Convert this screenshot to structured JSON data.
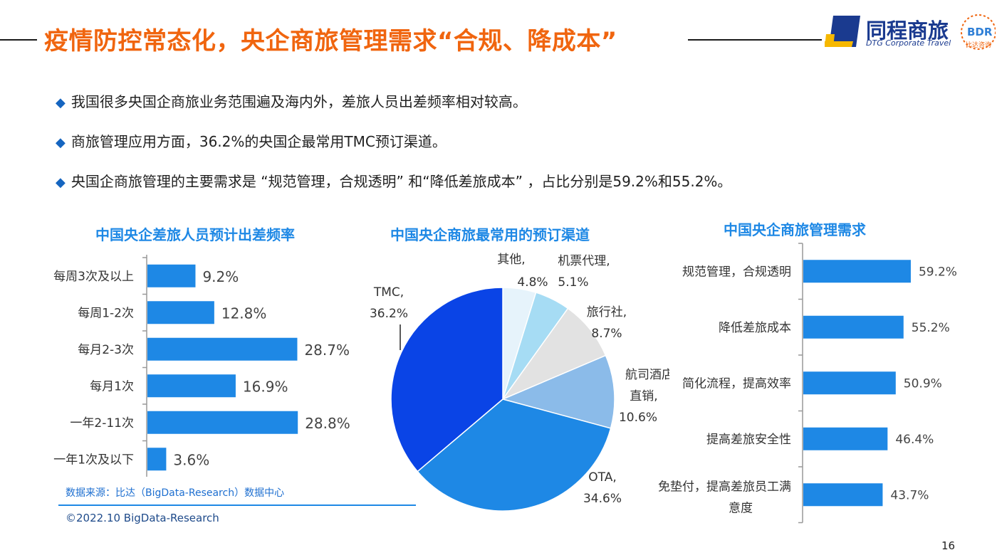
{
  "header": {
    "title": "疫情防控常态化，央企商旅管理需求“合规、降成本”",
    "logo_cn": "同程商旅",
    "logo_en": "DTG Corporate Travel",
    "bdr_text": "BDR",
    "bdr_sub": "比达咨询"
  },
  "bullets": [
    "我国很多央国企商旅业务范围遍及海内外，差旅人员出差频率相对较高。",
    "商旅管理应用方面，36.2%的央国企最常用TMC预订渠道。",
    "央国企商旅管理的主要需求是 “规范管理，合规透明” 和“降低差旅成本” ，占比分别是59.2%和55.2%。"
  ],
  "bullet_marker": "◆",
  "colors": {
    "title": "#f0650f",
    "bar": "#1e88e5",
    "chart_title": "#1e88e5"
  },
  "chart_data": [
    {
      "type": "bar",
      "orientation": "horizontal",
      "title": "中国央企差旅人员预计出差频率",
      "categories": [
        "每周3次及以上",
        "每周1-2次",
        "每月2-3次",
        "每月1次",
        "一年2-11次",
        "一年1次及以下"
      ],
      "values": [
        9.2,
        12.8,
        28.7,
        16.9,
        28.8,
        3.6
      ],
      "labels": [
        "9.2%",
        "12.8%",
        "28.7%",
        "16.9%",
        "28.8%",
        "3.6%"
      ],
      "xlim": [
        0,
        30
      ]
    },
    {
      "type": "pie",
      "title": "中国央企商旅最常用的预订渠道",
      "slices": [
        {
          "name": "其他,",
          "value": 4.8,
          "label": "4.8%",
          "color": "#e6f3fb"
        },
        {
          "name": "机票代理,",
          "value": 5.1,
          "label": "5.1%",
          "color": "#a6dcf4"
        },
        {
          "name": "旅行社,",
          "value": 8.7,
          "label": "8.7%",
          "color": "#e2e2e2"
        },
        {
          "name": "航司酒店直销,",
          "value": 10.6,
          "label": "10.6%",
          "color": "#8bbbe9"
        },
        {
          "name": "OTA,",
          "value": 34.6,
          "label": "34.6%",
          "color": "#1e88e5"
        },
        {
          "name": "TMC,",
          "value": 36.2,
          "label": "36.2%",
          "color": "#0a44e6"
        }
      ]
    },
    {
      "type": "bar",
      "orientation": "horizontal",
      "title": "中国央企商旅管理需求",
      "categories": [
        "规范管理，合规透明",
        "降低差旅成本",
        "简化流程，提高效率",
        "提高差旅安全性",
        "免垫付，提高差旅员工满意度"
      ],
      "values": [
        59.2,
        55.2,
        50.9,
        46.4,
        43.7
      ],
      "labels": [
        "59.2%",
        "55.2%",
        "50.9%",
        "46.4%",
        "43.7%"
      ],
      "xlim": [
        0,
        60
      ]
    }
  ],
  "footer": {
    "source": "数据来源：比达（BigData-Research）数据中心",
    "copyright": "©2022.10 BigData-Research",
    "page_number": "16"
  }
}
